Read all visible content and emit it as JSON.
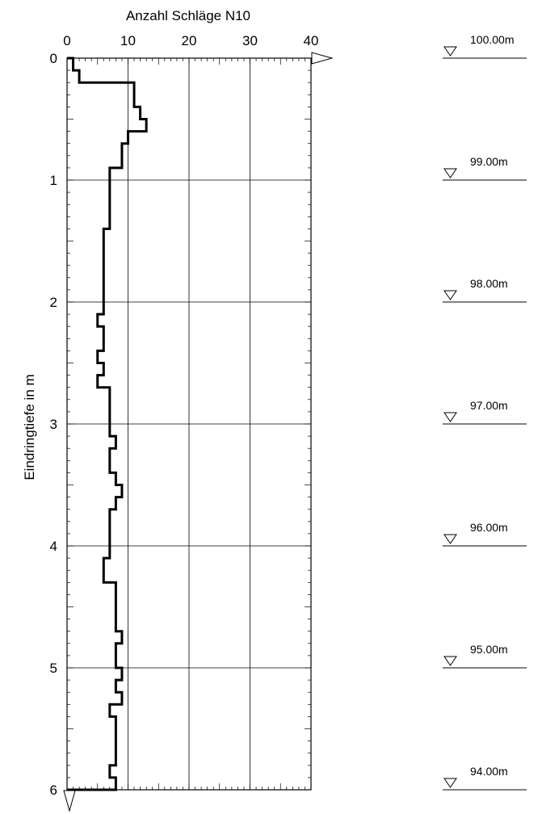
{
  "chart_data": {
    "type": "line",
    "title": "",
    "xlabel": "Anzahl Schläge N10",
    "ylabel": "Eindringtiefe in m",
    "xlim": [
      0,
      40
    ],
    "ylim": [
      0,
      6
    ],
    "y_inverted": true,
    "grid": true,
    "x_ticks": [
      "0",
      "10",
      "20",
      "30",
      "40"
    ],
    "y_ticks": [
      "0",
      "1",
      "2",
      "3",
      "4",
      "5",
      "6"
    ],
    "series": [
      {
        "step_depths": [
          0.0,
          0.1,
          0.2,
          0.4,
          0.5,
          0.6,
          0.7,
          0.9,
          1.4,
          2.1,
          2.2,
          2.4,
          2.5,
          2.6,
          2.7,
          3.1,
          3.2,
          3.4,
          3.5,
          3.6,
          3.7,
          4.1,
          4.3,
          4.7,
          4.8,
          5.0,
          5.1,
          5.2,
          5.3,
          5.4,
          5.8,
          5.9,
          6.0
        ],
        "blow_counts": [
          1,
          2,
          11,
          12,
          13,
          10,
          9,
          7,
          6,
          5,
          6,
          5,
          6,
          5,
          7,
          8,
          7,
          8,
          9,
          8,
          7,
          6,
          8,
          9,
          8,
          9,
          8,
          9,
          7,
          8,
          7,
          8
        ]
      }
    ],
    "elevations": [
      "100.00m",
      "99.00m",
      "98.00m",
      "97.00m",
      "96.00m",
      "95.00m",
      "94.00m"
    ]
  }
}
